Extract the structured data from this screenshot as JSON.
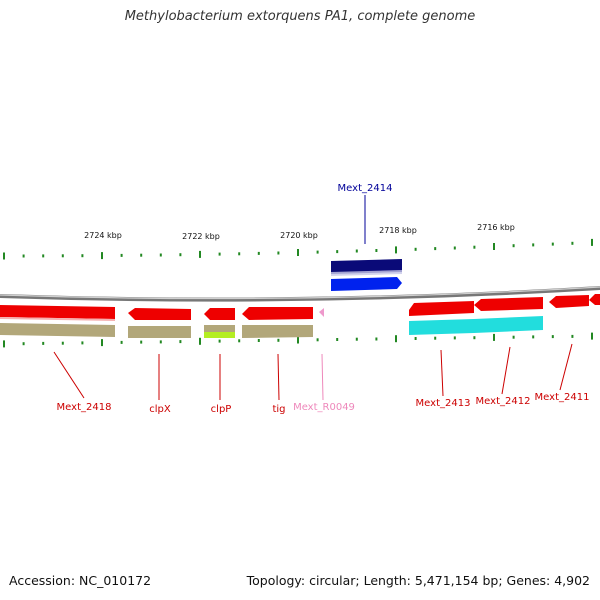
{
  "title": "Methylobacterium extorquens PA1, complete genome",
  "footer": {
    "accession": "Accession: NC_010172",
    "topology": "Topology: circular; Length: 5,471,154 bp; Genes: 4,902"
  },
  "scale_labels": [
    "2724 kbp",
    "2722 kbp",
    "2720 kbp",
    "2718 kbp",
    "2716 kbp"
  ],
  "colors": {
    "forward_gene": "#0022ee",
    "forward_cds": "#0a0a78",
    "reverse_gene": "#ee0000",
    "reverse_cds_tan": "#b2a77a",
    "reverse_cds_cyan": "#22dddd",
    "reverse_cds_lime": "#b4ee22",
    "trna": "#ee99cc",
    "tick": "#228822",
    "backbone": "#888888",
    "label_reverse": "#cc0000",
    "label_forward": "#000099",
    "label_trna": "#ee88bb"
  },
  "genes": [
    {
      "name": "Mext_2418",
      "strand": "reverse",
      "cds_color": "tan"
    },
    {
      "name": "clpX",
      "strand": "reverse",
      "cds_color": "tan"
    },
    {
      "name": "clpP",
      "strand": "reverse",
      "cds_color": "lime"
    },
    {
      "name": "tig",
      "strand": "reverse",
      "cds_color": "tan"
    },
    {
      "name": "Mext_R0049",
      "strand": "reverse",
      "type": "tRNA"
    },
    {
      "name": "Mext_2414",
      "strand": "forward",
      "cds_color": "navy"
    },
    {
      "name": "Mext_2413",
      "strand": "reverse",
      "cds_color": "cyan"
    },
    {
      "name": "Mext_2412",
      "strand": "reverse",
      "cds_color": "cyan"
    },
    {
      "name": "Mext_2411",
      "strand": "reverse"
    }
  ]
}
